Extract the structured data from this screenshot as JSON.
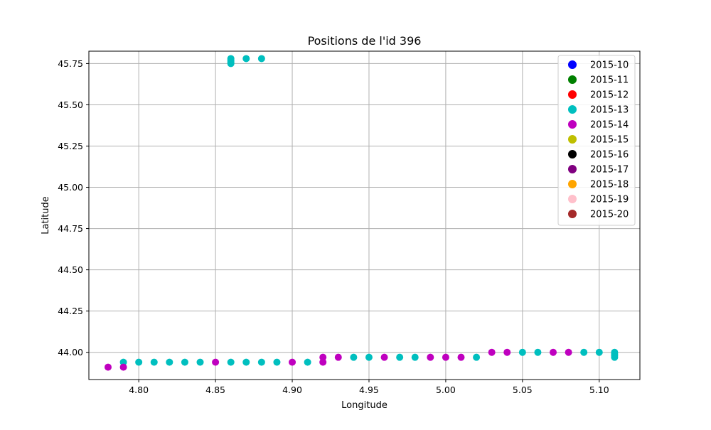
{
  "chart_data": {
    "type": "scatter",
    "title": "Positions de l'id 396",
    "xlabel": "Longitude",
    "ylabel": "Latitude",
    "xlim": [
      4.7675,
      5.1265
    ],
    "ylim": [
      43.835,
      45.825
    ],
    "grid": true,
    "legend_position": "top-right",
    "x_ticks": [
      {
        "value": 4.8,
        "label": "4.80"
      },
      {
        "value": 4.85,
        "label": "4.85"
      },
      {
        "value": 4.9,
        "label": "4.90"
      },
      {
        "value": 4.95,
        "label": "4.95"
      },
      {
        "value": 5.0,
        "label": "5.00"
      },
      {
        "value": 5.05,
        "label": "5.05"
      },
      {
        "value": 5.1,
        "label": "5.10"
      }
    ],
    "y_ticks": [
      {
        "value": 44.0,
        "label": "44.00"
      },
      {
        "value": 44.25,
        "label": "44.25"
      },
      {
        "value": 44.5,
        "label": "44.50"
      },
      {
        "value": 44.75,
        "label": "44.75"
      },
      {
        "value": 45.0,
        "label": "45.00"
      },
      {
        "value": 45.25,
        "label": "45.25"
      },
      {
        "value": 45.5,
        "label": "45.50"
      },
      {
        "value": 45.75,
        "label": "45.75"
      }
    ],
    "series": [
      {
        "name": "2015-10",
        "color": "#0000ff",
        "points": []
      },
      {
        "name": "2015-11",
        "color": "#008000",
        "points": []
      },
      {
        "name": "2015-12",
        "color": "#ff0000",
        "points": []
      },
      {
        "name": "2015-13",
        "color": "#00bfbf",
        "points": [
          [
            4.79,
            43.94
          ],
          [
            4.8,
            43.94
          ],
          [
            4.81,
            43.94
          ],
          [
            4.82,
            43.94
          ],
          [
            4.83,
            43.94
          ],
          [
            4.84,
            43.94
          ],
          [
            4.86,
            43.94
          ],
          [
            4.87,
            43.94
          ],
          [
            4.88,
            43.94
          ],
          [
            4.89,
            43.94
          ],
          [
            4.91,
            43.94
          ],
          [
            4.94,
            43.97
          ],
          [
            4.95,
            43.97
          ],
          [
            4.97,
            43.97
          ],
          [
            4.98,
            43.97
          ],
          [
            5.02,
            43.97
          ],
          [
            5.05,
            44.0
          ],
          [
            5.06,
            44.0
          ],
          [
            5.09,
            44.0
          ],
          [
            5.1,
            44.0
          ],
          [
            5.11,
            44.0
          ],
          [
            5.11,
            43.99
          ],
          [
            5.11,
            43.98
          ],
          [
            5.11,
            43.97
          ],
          [
            4.86,
            45.75
          ],
          [
            4.86,
            45.76
          ],
          [
            4.86,
            45.77
          ],
          [
            4.86,
            45.78
          ],
          [
            4.87,
            45.78
          ],
          [
            4.88,
            45.78
          ]
        ]
      },
      {
        "name": "2015-14",
        "color": "#bf00bf",
        "points": [
          [
            4.78,
            43.91
          ],
          [
            4.79,
            43.91
          ],
          [
            4.85,
            43.94
          ],
          [
            4.9,
            43.94
          ],
          [
            4.92,
            43.94
          ],
          [
            4.92,
            43.97
          ],
          [
            4.93,
            43.97
          ],
          [
            4.96,
            43.97
          ],
          [
            4.99,
            43.97
          ],
          [
            5.0,
            43.97
          ],
          [
            5.01,
            43.97
          ],
          [
            5.03,
            44.0
          ],
          [
            5.04,
            44.0
          ],
          [
            5.07,
            44.0
          ],
          [
            5.08,
            44.0
          ]
        ]
      },
      {
        "name": "2015-15",
        "color": "#bfbf00",
        "points": []
      },
      {
        "name": "2015-16",
        "color": "#000000",
        "points": []
      },
      {
        "name": "2015-17",
        "color": "#800080",
        "points": []
      },
      {
        "name": "2015-18",
        "color": "#ffa500",
        "points": []
      },
      {
        "name": "2015-19",
        "color": "#ffc0cb",
        "points": []
      },
      {
        "name": "2015-20",
        "color": "#a52a2a",
        "points": []
      }
    ]
  }
}
